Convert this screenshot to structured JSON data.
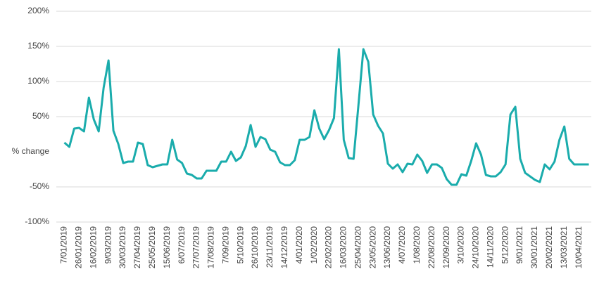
{
  "chart_data": {
    "type": "line",
    "y_label": "% change",
    "categories": [
      "7/01/2019",
      null,
      null,
      "26/01/2019",
      null,
      null,
      "16/02/2019",
      null,
      null,
      "9/03/2019",
      null,
      null,
      "30/03/2019",
      null,
      null,
      "27/04/2019",
      null,
      null,
      "25/05/2019",
      null,
      null,
      "15/06/2019",
      null,
      null,
      "6/07/2019",
      null,
      null,
      "27/07/2019",
      null,
      null,
      "17/08/2019",
      null,
      null,
      "7/09/2019",
      null,
      null,
      "5/10/2019",
      null,
      null,
      "26/10/2019",
      null,
      null,
      "23/11/2019",
      null,
      null,
      "14/12/2019",
      null,
      null,
      "4/01/2020",
      null,
      null,
      "1/02/2020",
      null,
      null,
      "22/02/2020",
      null,
      null,
      "16/03/2020",
      null,
      null,
      "25/04/2020",
      null,
      null,
      "23/05/2020",
      null,
      null,
      "13/06/2020",
      null,
      null,
      "4/07/2020",
      null,
      null,
      "1/08/2020",
      null,
      null,
      "22/08/2020",
      null,
      null,
      "12/09/2020",
      null,
      null,
      "3/10/2020",
      null,
      null,
      "24/10/2020",
      null,
      null,
      "14/11/2020",
      null,
      null,
      "5/12/2020",
      null,
      null,
      "9/01/2021",
      null,
      null,
      "30/01/2021",
      null,
      null,
      "20/02/2021",
      null,
      null,
      "13/03/2021",
      null,
      null,
      "10/04/2021",
      null,
      null
    ],
    "values": [
      13,
      7,
      33,
      34,
      29,
      77,
      46,
      29,
      91,
      130,
      30,
      11,
      -16,
      -14,
      -14,
      13,
      11,
      -19,
      -22,
      -20,
      -18,
      -18,
      17,
      -11,
      -16,
      -31,
      -33,
      -38,
      -38,
      -27,
      -27,
      -27,
      -14,
      -14,
      0,
      -13,
      -8,
      8,
      38,
      7,
      21,
      18,
      3,
      0,
      -15,
      -19,
      -19,
      -12,
      17,
      17,
      21,
      59,
      33,
      18,
      31,
      48,
      146,
      17,
      -9,
      -10,
      67,
      146,
      128,
      53,
      37,
      26,
      -17,
      -24,
      -18,
      -29,
      -17,
      -18,
      -4,
      -13,
      -30,
      -18,
      -18,
      -23,
      -39,
      -47,
      -47,
      -32,
      -34,
      -13,
      12,
      -4,
      -33,
      -35,
      -35,
      -29,
      -18,
      53,
      64,
      -10,
      -30,
      -35,
      -40,
      -43,
      -18,
      -25,
      -14,
      17,
      36,
      -10,
      -18,
      -18,
      -18,
      -18
    ],
    "color": "#1aacac",
    "ylim": [
      -100,
      200
    ],
    "yticks": [
      {
        "value": -100,
        "label": "-100%"
      },
      {
        "value": -50,
        "label": "-50%"
      },
      {
        "value": 50,
        "label": "50%"
      },
      {
        "value": 100,
        "label": "100%"
      },
      {
        "value": 150,
        "label": "150%"
      },
      {
        "value": 200,
        "label": "200%"
      }
    ],
    "grid": true
  }
}
